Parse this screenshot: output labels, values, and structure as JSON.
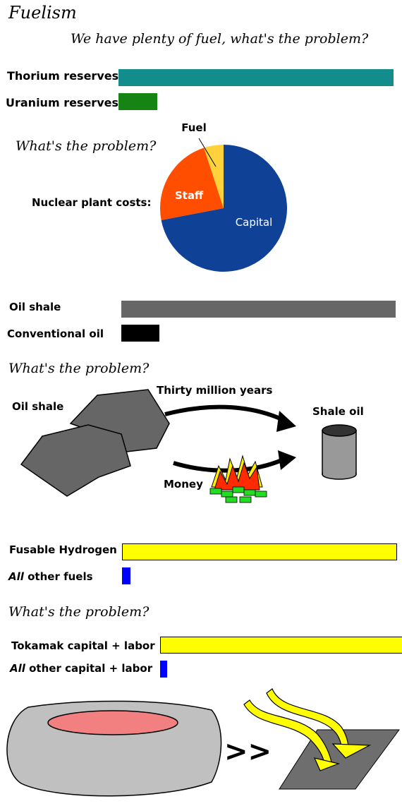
{
  "title": "Fuelism",
  "subtitle": "We have plenty of fuel, what's the problem?",
  "section1": {
    "bars": [
      {
        "label": "Thorium reserves",
        "value": 1.0,
        "color": "#138c8c"
      },
      {
        "label": "Uranium reserves",
        "value": 0.14,
        "color": "#158415"
      }
    ],
    "question": "What's the problem?",
    "pie_label": "Nuclear plant costs:"
  },
  "chart_data": {
    "type": "pie",
    "title": "Nuclear plant costs:",
    "slices": [
      {
        "label": "Capital",
        "value": 72,
        "color": "#0f4196"
      },
      {
        "label": "Staff",
        "value": 23,
        "color": "#ff4e00"
      },
      {
        "label": "Fuel",
        "value": 5,
        "color": "#ffd23c"
      }
    ]
  },
  "section2": {
    "bars": [
      {
        "label": "Oil shale",
        "value": 1.0,
        "color": "#666666"
      },
      {
        "label": "Conventional oil",
        "value": 0.14,
        "color": "#000000"
      }
    ],
    "question": "What's the problem?",
    "oil_shale_label": "Oil shale",
    "time_label": "Thirty million years",
    "money_label": "Money",
    "shale_oil_label": "Shale oil"
  },
  "section3": {
    "bars": [
      {
        "label": "Fusable Hydrogen",
        "value": 1.0,
        "color": "#ffff00"
      },
      {
        "label_em": "All",
        "label": " other fuels",
        "value": 0.03,
        "color": "#0000ff"
      }
    ],
    "question": "What's the problem?"
  },
  "section4": {
    "bars": [
      {
        "label": "Tokamak capital + labor",
        "value": 1.0,
        "color": "#ffff00"
      },
      {
        "label_em": "All",
        "label": " other capital + labor",
        "value": 0.03,
        "color": "#0000ff"
      }
    ],
    "comparator": ">>"
  }
}
